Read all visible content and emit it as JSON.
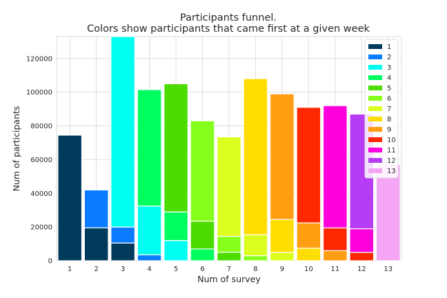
{
  "chart_data": {
    "type": "bar",
    "stacked": true,
    "title": [
      "Participants funnel.",
      "Colors show participants that came first at a given week"
    ],
    "xlabel": "Num of survey",
    "ylabel": "Num of participants",
    "ylim": [
      0,
      133000
    ],
    "yticks": [
      0,
      20000,
      40000,
      60000,
      80000,
      100000,
      120000
    ],
    "categories": [
      "1",
      "2",
      "3",
      "4",
      "5",
      "6",
      "7",
      "8",
      "9",
      "10",
      "11",
      "12",
      "13"
    ],
    "grid": true,
    "legend_position": "top-right",
    "series": [
      {
        "name": "1",
        "color": "#003b5c",
        "values": [
          74500,
          19500,
          10500,
          0,
          0,
          0,
          0,
          0,
          0,
          0,
          0,
          0,
          0
        ]
      },
      {
        "name": "2",
        "color": "#0a7cff",
        "values": [
          0,
          22500,
          9500,
          3500,
          0,
          0,
          0,
          0,
          0,
          0,
          0,
          0,
          0
        ]
      },
      {
        "name": "3",
        "color": "#00fff0",
        "values": [
          0,
          0,
          113000,
          29000,
          12000,
          0,
          0,
          0,
          0,
          0,
          0,
          0,
          0
        ]
      },
      {
        "name": "4",
        "color": "#00ff5e",
        "values": [
          0,
          0,
          0,
          69000,
          17000,
          7000,
          0,
          0,
          0,
          0,
          0,
          0,
          0
        ]
      },
      {
        "name": "5",
        "color": "#4cdc00",
        "values": [
          0,
          0,
          0,
          0,
          76000,
          16500,
          5000,
          0,
          0,
          0,
          0,
          0,
          0
        ]
      },
      {
        "name": "6",
        "color": "#86ff1a",
        "values": [
          0,
          0,
          0,
          0,
          0,
          59500,
          9500,
          3000,
          0,
          0,
          0,
          0,
          0
        ]
      },
      {
        "name": "7",
        "color": "#ddff20",
        "values": [
          0,
          0,
          0,
          0,
          0,
          0,
          59000,
          12500,
          5000,
          0,
          0,
          0,
          0
        ]
      },
      {
        "name": "8",
        "color": "#ffdd00",
        "values": [
          0,
          0,
          0,
          0,
          0,
          0,
          0,
          92500,
          19500,
          7500,
          0,
          0,
          0
        ]
      },
      {
        "name": "9",
        "color": "#ff9e10",
        "values": [
          0,
          0,
          0,
          0,
          0,
          0,
          0,
          0,
          74500,
          15000,
          6000,
          0,
          0
        ]
      },
      {
        "name": "10",
        "color": "#ff2800",
        "values": [
          0,
          0,
          0,
          0,
          0,
          0,
          0,
          0,
          0,
          68500,
          13500,
          5000,
          0
        ]
      },
      {
        "name": "11",
        "color": "#ff00dd",
        "values": [
          0,
          0,
          0,
          0,
          0,
          0,
          0,
          0,
          0,
          0,
          72500,
          14000,
          0
        ]
      },
      {
        "name": "12",
        "color": "#b63cf5",
        "values": [
          0,
          0,
          0,
          0,
          0,
          0,
          0,
          0,
          0,
          0,
          0,
          68000,
          0
        ]
      },
      {
        "name": "13",
        "color": "#f4a6f4",
        "values": [
          0,
          0,
          0,
          0,
          0,
          0,
          0,
          0,
          0,
          0,
          0,
          0,
          57000
        ]
      }
    ]
  }
}
